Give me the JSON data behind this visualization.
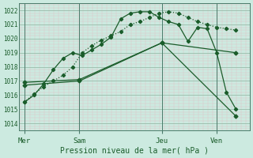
{
  "bg_color": "#cceae0",
  "grid_major_color": "#99bbaa",
  "grid_minor_color": "#ddc8c8",
  "line_color": "#1a5c2a",
  "vline_color": "#4a7a6a",
  "title": "Pression niveau de la mer( hPa )",
  "ylim": [
    1013.5,
    1022.5
  ],
  "xlim": [
    0.3,
    8.7
  ],
  "yticks": [
    1014,
    1015,
    1016,
    1017,
    1018,
    1019,
    1020,
    1021,
    1022
  ],
  "day_labels": [
    "Mer",
    "Sam",
    "Jeu",
    "Ven"
  ],
  "day_positions": [
    0.5,
    2.5,
    5.5,
    7.5
  ],
  "vlines": [
    0.5,
    2.5,
    5.5,
    7.5
  ],
  "lines": [
    {
      "x": [
        0.5,
        0.85,
        1.2,
        1.55,
        1.9,
        2.25,
        2.6,
        2.95,
        3.3,
        3.65,
        4.0,
        4.35,
        4.7,
        5.05,
        5.4,
        5.75,
        6.1,
        6.45,
        6.8,
        7.15,
        7.5,
        7.85,
        8.2
      ],
      "y": [
        1015.5,
        1016.1,
        1016.6,
        1017.0,
        1017.4,
        1018.0,
        1019.0,
        1019.5,
        1019.9,
        1020.2,
        1020.5,
        1021.0,
        1021.2,
        1021.5,
        1021.8,
        1021.9,
        1021.8,
        1021.5,
        1021.2,
        1021.0,
        1020.8,
        1020.7,
        1020.6
      ],
      "linestyle": "dotted",
      "marker": "D",
      "markersize": 2.2,
      "linewidth": 0.9
    },
    {
      "x": [
        0.5,
        0.85,
        1.2,
        1.55,
        1.9,
        2.25,
        2.6,
        2.95,
        3.3,
        3.65,
        4.0,
        4.35,
        4.7,
        5.05,
        5.4,
        5.75,
        6.1,
        6.45,
        6.8,
        7.15,
        7.5,
        7.85,
        8.2
      ],
      "y": [
        1015.5,
        1016.0,
        1016.8,
        1017.8,
        1018.6,
        1019.0,
        1018.8,
        1019.2,
        1019.6,
        1020.1,
        1021.4,
        1021.8,
        1021.9,
        1021.9,
        1021.5,
        1021.2,
        1021.0,
        1019.8,
        1020.8,
        1020.7,
        1019.0,
        1016.2,
        1015.0
      ],
      "linestyle": "-",
      "marker": "D",
      "markersize": 2.2,
      "linewidth": 0.9
    },
    {
      "x": [
        0.5,
        2.5,
        5.5,
        8.2
      ],
      "y": [
        1016.9,
        1017.1,
        1019.7,
        1019.0
      ],
      "linestyle": "-",
      "marker": "D",
      "markersize": 2.5,
      "linewidth": 0.9
    },
    {
      "x": [
        0.5,
        2.5,
        5.5,
        8.2
      ],
      "y": [
        1016.7,
        1017.0,
        1019.7,
        1014.5
      ],
      "linestyle": "-",
      "marker": "D",
      "markersize": 2.5,
      "linewidth": 0.9
    }
  ]
}
